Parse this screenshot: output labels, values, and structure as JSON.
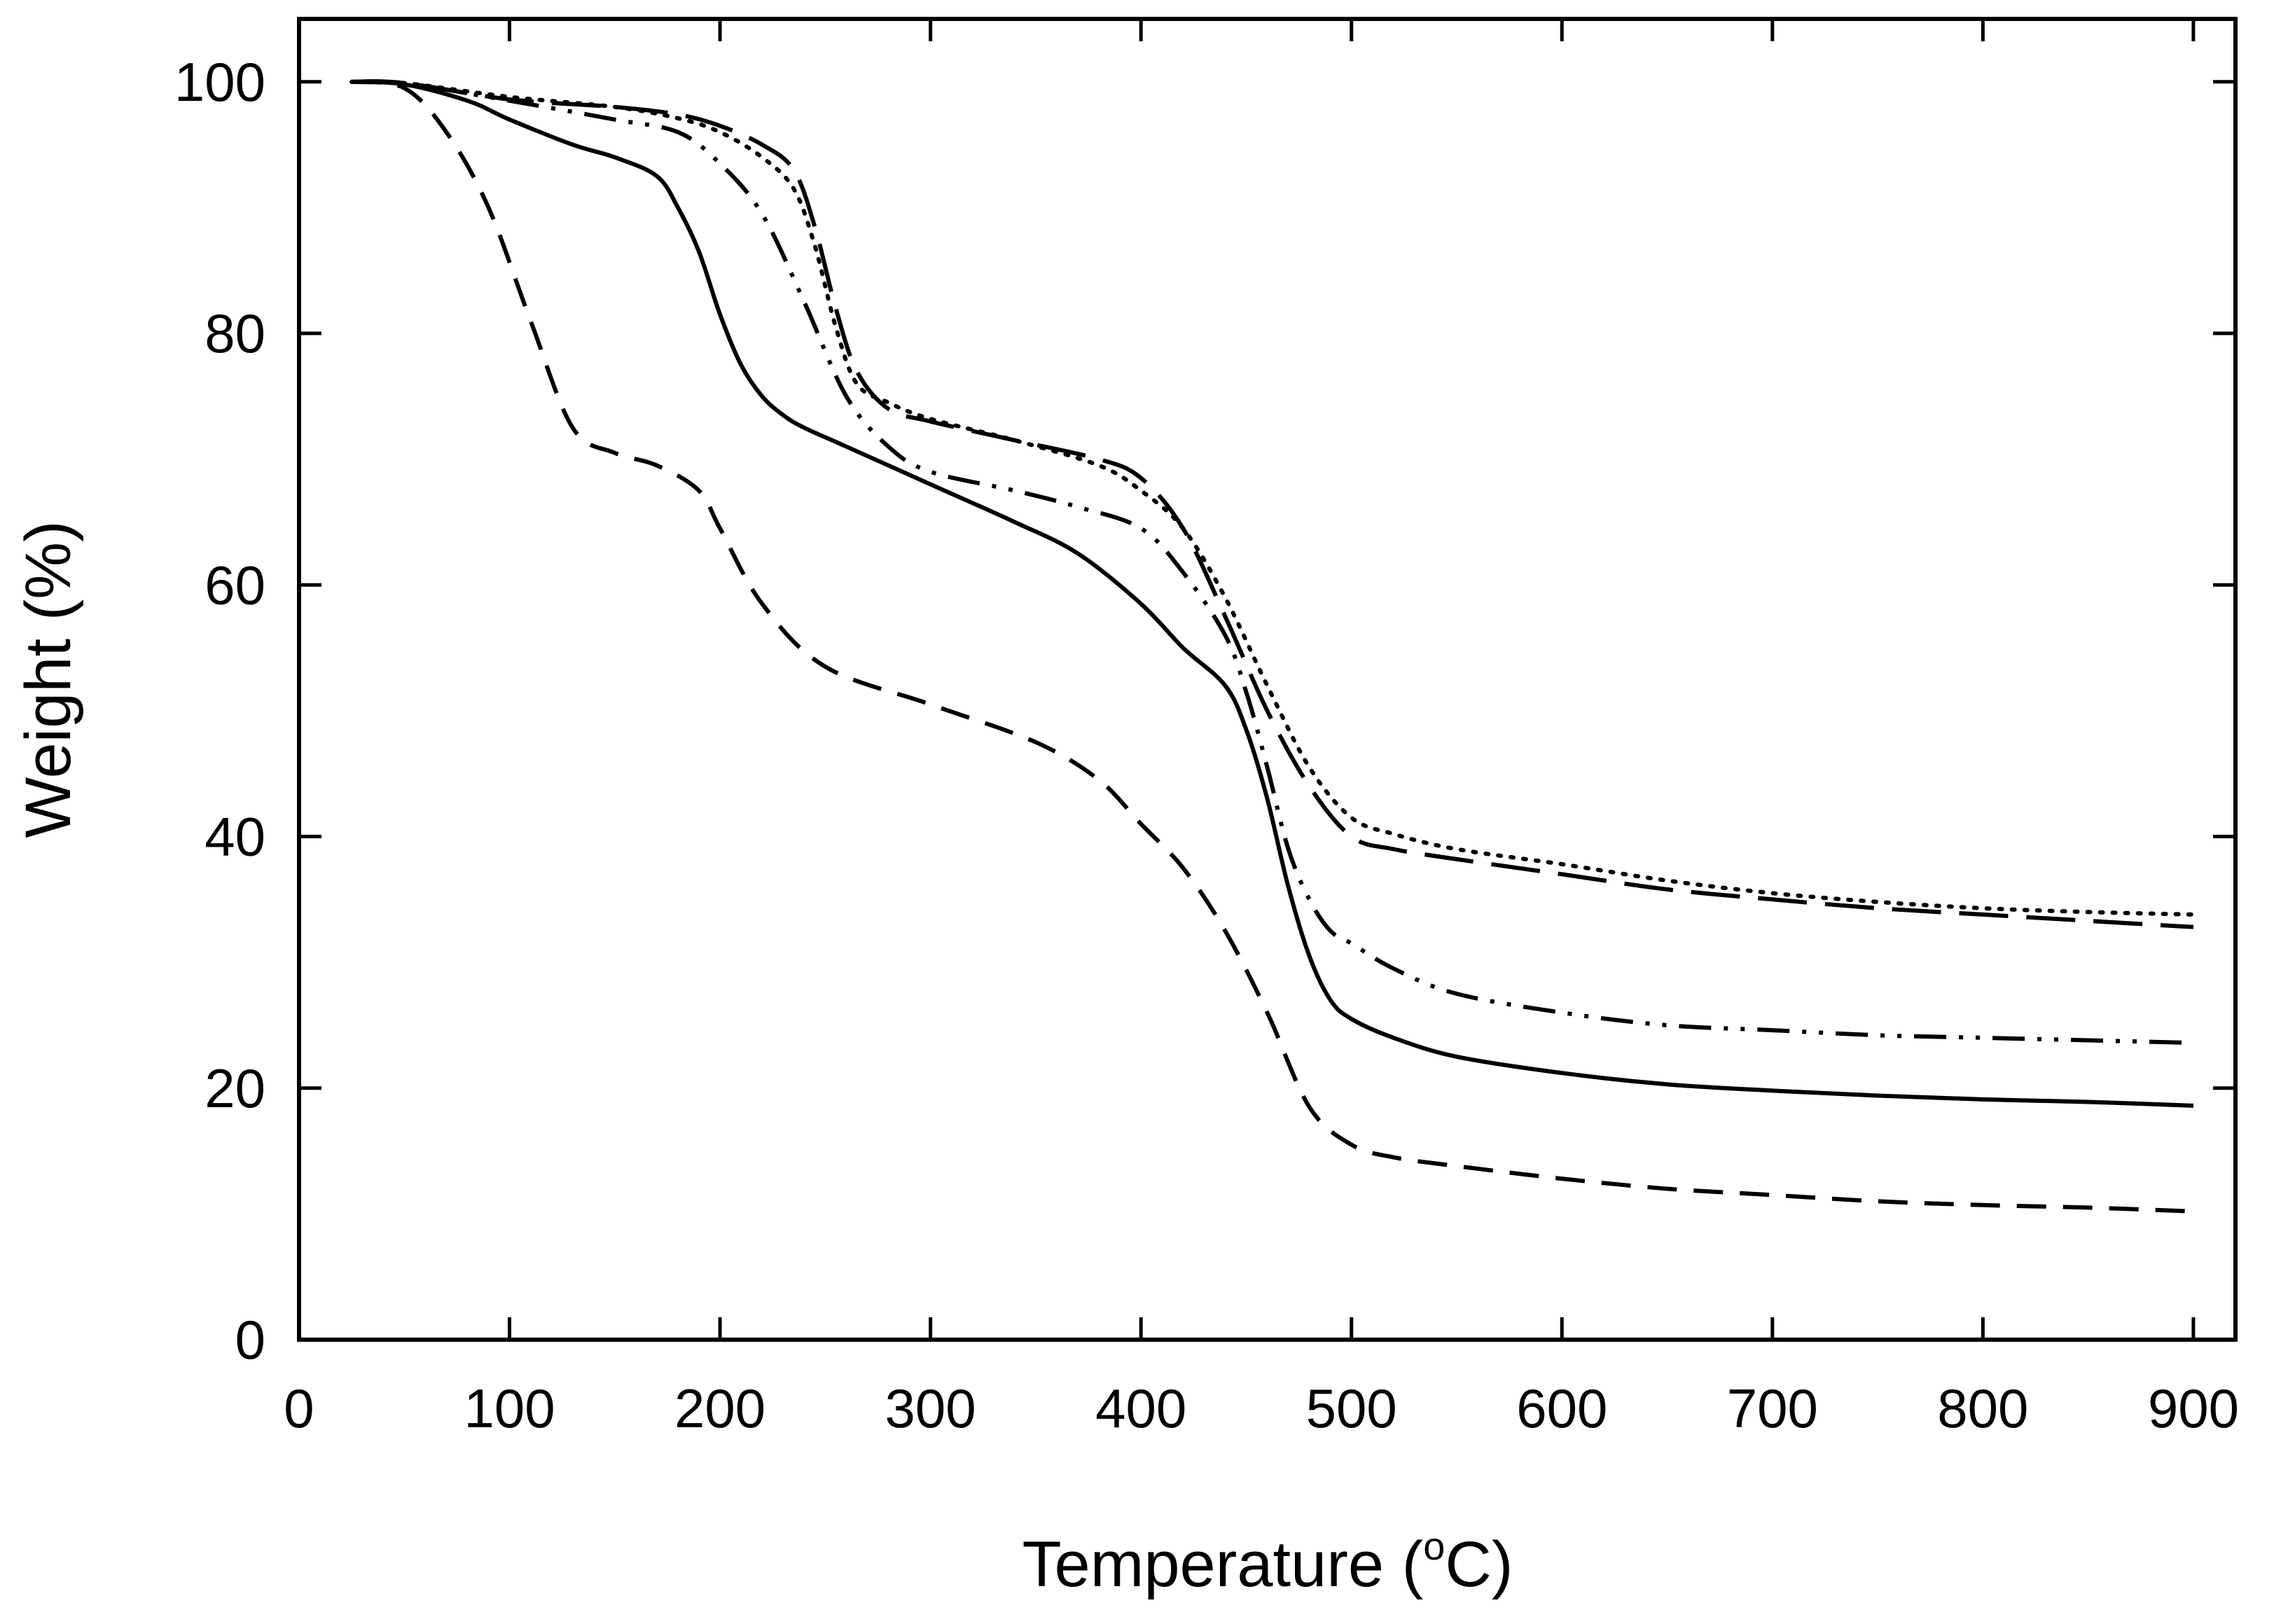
{
  "chart_data": {
    "type": "line",
    "title": "",
    "xlabel_main": "Temperature (",
    "xlabel_sup": "o",
    "xlabel_unit": "C)",
    "ylabel": "Weight (%)",
    "xlim": [
      0,
      920
    ],
    "ylim": [
      0,
      105
    ],
    "xticks": [
      0,
      100,
      200,
      300,
      400,
      500,
      600,
      700,
      800,
      900
    ],
    "yticks": [
      0,
      20,
      40,
      60,
      80,
      100
    ],
    "grid": false,
    "legend": "none",
    "series": [
      {
        "name": "solid",
        "style": "solid",
        "x": [
          25,
          50,
          80,
          100,
          130,
          150,
          170,
          180,
          190,
          200,
          210,
          220,
          230,
          240,
          260,
          300,
          340,
          370,
          400,
          420,
          440,
          450,
          460,
          470,
          480,
          490,
          500,
          520,
          550,
          600,
          650,
          700,
          750,
          800,
          850,
          900
        ],
        "y": [
          100,
          99.8,
          98.5,
          97,
          95,
          94,
          92.5,
          90,
          86.5,
          81.5,
          77.5,
          75,
          73.5,
          72.5,
          71,
          68,
          65,
          62.5,
          58.5,
          55,
          52,
          48.5,
          43,
          36,
          30.5,
          27,
          25.5,
          24,
          22.5,
          21.2,
          20.3,
          19.8,
          19.4,
          19.1,
          18.9,
          18.6
        ]
      },
      {
        "name": "dashed-short",
        "style": "short-dash",
        "x": [
          25,
          50,
          70,
          90,
          110,
          130,
          150,
          170,
          190,
          200,
          220,
          250,
          300,
          350,
          380,
          400,
          420,
          440,
          460,
          480,
          500,
          520,
          550,
          600,
          650,
          700,
          750,
          800,
          850,
          900
        ],
        "y": [
          100,
          99.5,
          96,
          90,
          81,
          72.5,
          70.5,
          69.5,
          67.5,
          64.5,
          58.5,
          53.5,
          50.5,
          47.5,
          44.5,
          41,
          37.5,
          32.5,
          26,
          18.5,
          15.5,
          14.5,
          13.8,
          12.8,
          12,
          11.5,
          11,
          10.7,
          10.5,
          10.2
        ]
      },
      {
        "name": "dash-dot-dot",
        "style": "dash-dot-dot",
        "x": [
          25,
          50,
          100,
          150,
          180,
          200,
          220,
          240,
          260,
          280,
          300,
          340,
          370,
          400,
          420,
          440,
          450,
          460,
          470,
          480,
          490,
          500,
          520,
          550,
          600,
          650,
          700,
          750,
          800,
          850,
          900
        ],
        "y": [
          100,
          99.9,
          98.5,
          97,
          96,
          93.5,
          89.5,
          82.5,
          75,
          71,
          69,
          67.5,
          66.2,
          64.5,
          61,
          56,
          51.5,
          45.5,
          39,
          35,
          32.5,
          31.5,
          29.5,
          27.5,
          26,
          25,
          24.6,
          24.2,
          24,
          23.8,
          23.6
        ]
      },
      {
        "name": "dash-long",
        "style": "long-dash",
        "x": [
          25,
          50,
          100,
          150,
          180,
          200,
          220,
          235,
          245,
          255,
          265,
          280,
          300,
          340,
          380,
          400,
          420,
          440,
          460,
          480,
          500,
          520,
          550,
          600,
          650,
          700,
          750,
          800,
          850,
          900
        ],
        "y": [
          100,
          99.9,
          98.6,
          98,
          97.4,
          96.5,
          95,
          93,
          88.5,
          82,
          77,
          74,
          73,
          71.5,
          70,
          68.5,
          64.5,
          57.5,
          50,
          44,
          40,
          39,
          38.2,
          37,
          35.8,
          35,
          34.3,
          33.8,
          33.3,
          32.8
        ]
      },
      {
        "name": "dotted",
        "style": "dotted",
        "x": [
          25,
          50,
          100,
          150,
          180,
          200,
          220,
          235,
          245,
          255,
          265,
          280,
          300,
          340,
          380,
          400,
          420,
          440,
          460,
          480,
          500,
          520,
          550,
          600,
          650,
          700,
          750,
          800,
          850,
          900
        ],
        "y": [
          100,
          99.9,
          98.8,
          98,
          97.1,
          96,
          94,
          91.5,
          87,
          80.5,
          76,
          74.5,
          73.2,
          71.5,
          69.5,
          67.5,
          64.5,
          59,
          52,
          45.5,
          41.5,
          40.2,
          39,
          37.8,
          36.5,
          35.5,
          34.8,
          34.3,
          34,
          33.8
        ]
      }
    ]
  }
}
